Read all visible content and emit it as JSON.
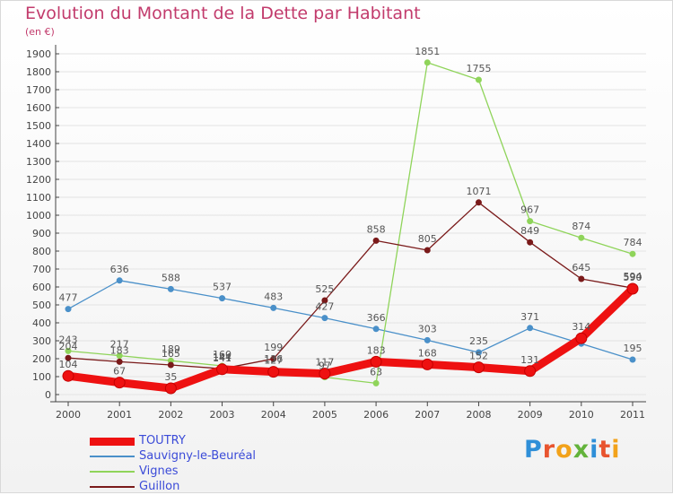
{
  "header": {
    "title": "Evolution du Montant de la Dette par Habitant",
    "unit": "(en €)"
  },
  "logo": {
    "text": "Proxiti",
    "letter_colors": [
      "#2f8fd8",
      "#e8542f",
      "#f2a21a",
      "#63b33b",
      "#2f8fd8",
      "#e8542f",
      "#f2a21a"
    ]
  },
  "colors": {
    "title": "#c23b6c",
    "legend_text": "#3b4bd8",
    "axis": "#444444",
    "grid": "#e3e3e3",
    "label": "#555555"
  },
  "chart_data": {
    "type": "line",
    "x": [
      "2000",
      "2001",
      "2002",
      "2003",
      "2004",
      "2005",
      "2006",
      "2007",
      "2008",
      "2009",
      "2010",
      "2011"
    ],
    "ylim": [
      0,
      1900
    ],
    "yticks": [
      0,
      100,
      200,
      300,
      400,
      500,
      600,
      700,
      800,
      900,
      1000,
      1100,
      1200,
      1300,
      1400,
      1500,
      1600,
      1700,
      1800,
      1900
    ],
    "grid": true,
    "legend_position": "bottom-left",
    "series": [
      {
        "name": "Sauvigny-le-Beuréal",
        "color": "#4a90c9",
        "marker": "#4a90c9",
        "width": 1.3,
        "values": [
          477,
          636,
          588,
          537,
          483,
          427,
          366,
          303,
          235,
          371,
          284,
          195
        ],
        "labels": [
          "477",
          "636",
          "588",
          "537",
          "483",
          "427",
          "366",
          "303",
          "235",
          "371",
          "",
          "195"
        ]
      },
      {
        "name": "Vignes",
        "color": "#8fd45a",
        "marker": "#8fd45a",
        "width": 1.3,
        "values": [
          243,
          217,
          189,
          160,
          136,
          97,
          63,
          1851,
          1755,
          967,
          874,
          784
        ],
        "labels": [
          "243",
          "217",
          "189",
          "160",
          "136",
          "97",
          "63",
          "1851",
          "1755",
          "967",
          "874",
          "784"
        ]
      },
      {
        "name": "Guillon",
        "color": "#7a1a1a",
        "marker": "#7a1a1a",
        "width": 1.3,
        "values": [
          204,
          183,
          165,
          144,
          199,
          525,
          858,
          805,
          1071,
          849,
          645,
          594
        ],
        "labels": [
          "204",
          "183",
          "165",
          "144",
          "199",
          "525",
          "858",
          "805",
          "1071",
          "849",
          "645",
          "594"
        ]
      },
      {
        "name": "TOUTRY",
        "color": "#ee1111",
        "marker": "#ee1111",
        "width": 9,
        "values": [
          104,
          67,
          35,
          141,
          127,
          117,
          183,
          168,
          152,
          131,
          314,
          590
        ],
        "labels": [
          "104",
          "67",
          "35",
          "141",
          "127",
          "117",
          "183",
          "168",
          "152",
          "131",
          "314",
          "590"
        ]
      }
    ],
    "legend": [
      "TOUTRY",
      "Sauvigny-le-Beuréal",
      "Vignes",
      "Guillon"
    ]
  }
}
